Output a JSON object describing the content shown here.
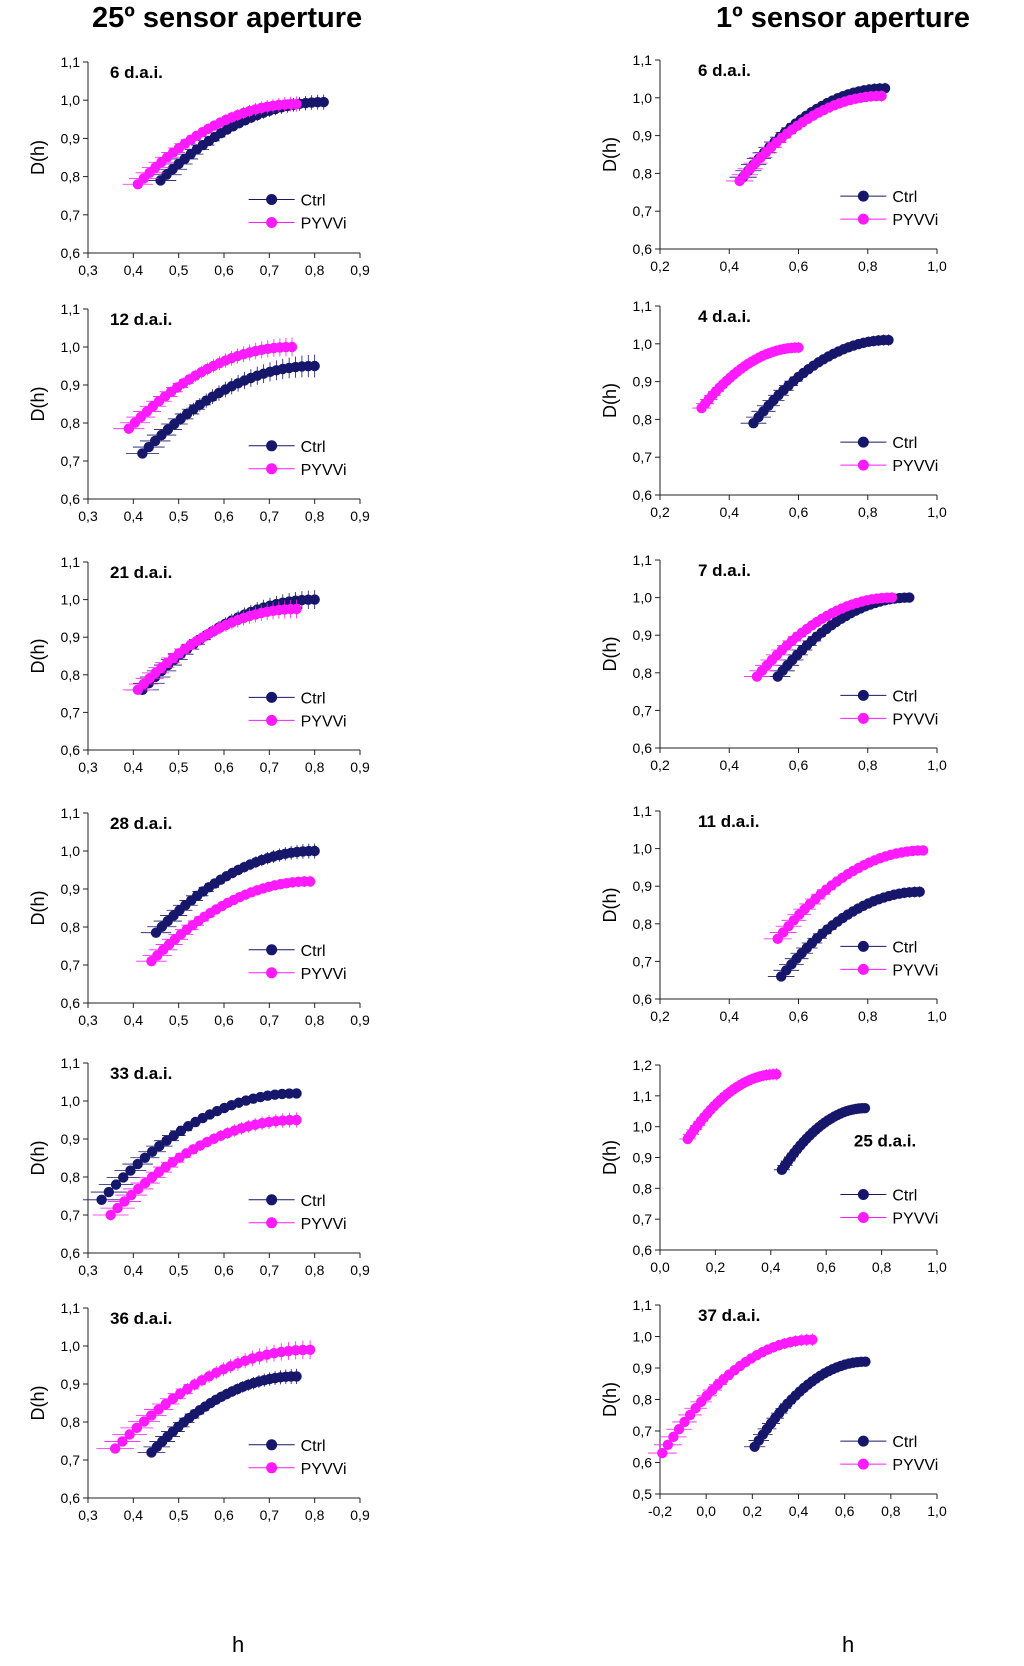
{
  "figure": {
    "left_title": "25º sensor aperture",
    "right_title": "1º sensor aperture",
    "x_label": "h",
    "y_label": "D(h)"
  },
  "colors": {
    "ctrl": "#16166b",
    "pyvvi": "#ff1aff"
  },
  "chart_data": [
    {
      "column": "left",
      "type": "scatter",
      "title": "6 d.a.i.",
      "xlabel": "h",
      "ylabel": "D(h)",
      "xlim": [
        0.3,
        0.9
      ],
      "ylim": [
        0.6,
        1.1
      ],
      "xticks": [
        "0,3",
        "0,4",
        "0,5",
        "0,6",
        "0,7",
        "0,8",
        "0,9"
      ],
      "yticks": [
        "0,6",
        "0,7",
        "0,8",
        "0,9",
        "1,0",
        "1,1"
      ],
      "legend": [
        "Ctrl",
        "PYVVi"
      ],
      "series": [
        {
          "name": "Ctrl",
          "x_range": [
            0.46,
            0.82
          ],
          "y_range": [
            0.79,
            0.995
          ],
          "err": 0.02
        },
        {
          "name": "PYVVi",
          "x_range": [
            0.41,
            0.76
          ],
          "y_range": [
            0.78,
            0.99
          ],
          "err": 0.02
        }
      ]
    },
    {
      "column": "left",
      "type": "scatter",
      "title": "12 d.a.i.",
      "xlabel": "h",
      "ylabel": "D(h)",
      "xlim": [
        0.3,
        0.9
      ],
      "ylim": [
        0.6,
        1.1
      ],
      "xticks": [
        "0,3",
        "0,4",
        "0,5",
        "0,6",
        "0,7",
        "0,8",
        "0,9"
      ],
      "yticks": [
        "0,6",
        "0,7",
        "0,8",
        "0,9",
        "1,0",
        "1,1"
      ],
      "legend": [
        "Ctrl",
        "PYVVi"
      ],
      "series": [
        {
          "name": "Ctrl",
          "x_range": [
            0.42,
            0.8
          ],
          "y_range": [
            0.72,
            0.95
          ],
          "err": 0.03
        },
        {
          "name": "PYVVi",
          "x_range": [
            0.39,
            0.75
          ],
          "y_range": [
            0.785,
            1.0
          ],
          "err": 0.025
        }
      ]
    },
    {
      "column": "left",
      "type": "scatter",
      "title": "21 d.a.i.",
      "xlabel": "h",
      "ylabel": "D(h)",
      "xlim": [
        0.3,
        0.9
      ],
      "ylim": [
        0.6,
        1.1
      ],
      "xticks": [
        "0,3",
        "0,4",
        "0,5",
        "0,6",
        "0,7",
        "0,8",
        "0,9"
      ],
      "yticks": [
        "0,6",
        "0,7",
        "0,8",
        "0,9",
        "1,0",
        "1,1"
      ],
      "legend": [
        "Ctrl",
        "PYVVi"
      ],
      "series": [
        {
          "name": "Ctrl",
          "x_range": [
            0.42,
            0.8
          ],
          "y_range": [
            0.76,
            1.0
          ],
          "err": 0.025
        },
        {
          "name": "PYVVi",
          "x_range": [
            0.41,
            0.76
          ],
          "y_range": [
            0.76,
            0.975
          ],
          "err": 0.025
        }
      ]
    },
    {
      "column": "left",
      "type": "scatter",
      "title": "28 d.a.i.",
      "xlabel": "h",
      "ylabel": "D(h)",
      "xlim": [
        0.3,
        0.9
      ],
      "ylim": [
        0.6,
        1.1
      ],
      "xticks": [
        "0,3",
        "0,4",
        "0,5",
        "0,6",
        "0,7",
        "0,8",
        "0,9"
      ],
      "yticks": [
        "0,6",
        "0,7",
        "0,8",
        "0,9",
        "1,0",
        "1,1"
      ],
      "legend": [
        "Ctrl",
        "PYVVi"
      ],
      "series": [
        {
          "name": "Ctrl",
          "x_range": [
            0.45,
            0.8
          ],
          "y_range": [
            0.785,
            1.0
          ],
          "err": 0.02
        },
        {
          "name": "PYVVi",
          "x_range": [
            0.44,
            0.79
          ],
          "y_range": [
            0.71,
            0.92
          ],
          "err": 0.015
        }
      ]
    },
    {
      "column": "left",
      "type": "scatter",
      "title": "33 d.a.i.",
      "xlabel": "h",
      "ylabel": "D(h)",
      "xlim": [
        0.3,
        0.9
      ],
      "ylim": [
        0.6,
        1.1
      ],
      "xticks": [
        "0,3",
        "0,4",
        "0,5",
        "0,6",
        "0,7",
        "0,8",
        "0,9"
      ],
      "yticks": [
        "0,6",
        "0,7",
        "0,8",
        "0,9",
        "1,0",
        "1,1"
      ],
      "legend": [
        "Ctrl",
        "PYVVi"
      ],
      "series": [
        {
          "name": "Ctrl",
          "x_range": [
            0.33,
            0.76
          ],
          "y_range": [
            0.74,
            1.02
          ],
          "err": 0.01
        },
        {
          "name": "PYVVi",
          "x_range": [
            0.35,
            0.76
          ],
          "y_range": [
            0.7,
            0.95
          ],
          "err": 0.02
        }
      ]
    },
    {
      "column": "left",
      "type": "scatter",
      "title": "36 d.a.i.",
      "xlabel": "h",
      "ylabel": "D(h)",
      "xlim": [
        0.3,
        0.9
      ],
      "ylim": [
        0.6,
        1.1
      ],
      "xticks": [
        "0,3",
        "0,4",
        "0,5",
        "0,6",
        "0,7",
        "0,8",
        "0,9"
      ],
      "yticks": [
        "0,6",
        "0,7",
        "0,8",
        "0,9",
        "1,0",
        "1,1"
      ],
      "legend": [
        "Ctrl",
        "PYVVi"
      ],
      "series": [
        {
          "name": "Ctrl",
          "x_range": [
            0.44,
            0.76
          ],
          "y_range": [
            0.72,
            0.92
          ],
          "err": 0.02
        },
        {
          "name": "PYVVi",
          "x_range": [
            0.36,
            0.79
          ],
          "y_range": [
            0.73,
            0.99
          ],
          "err": 0.025
        }
      ]
    },
    {
      "column": "right",
      "type": "scatter",
      "title": "6 d.a.i.",
      "xlabel": "h",
      "ylabel": "D(h)",
      "xlim": [
        0.2,
        1.0
      ],
      "ylim": [
        0.6,
        1.1
      ],
      "xticks": [
        "0,2",
        "0,4",
        "0,6",
        "0,8",
        "1,0"
      ],
      "yticks": [
        "0,6",
        "0,7",
        "0,8",
        "0,9",
        "1,0",
        "1,1"
      ],
      "legend": [
        "Ctrl",
        "PYVVi"
      ],
      "series": [
        {
          "name": "Ctrl",
          "x_range": [
            0.44,
            0.85
          ],
          "y_range": [
            0.79,
            1.025
          ],
          "err": 0.015
        },
        {
          "name": "PYVVi",
          "x_range": [
            0.43,
            0.84
          ],
          "y_range": [
            0.78,
            1.005
          ],
          "err": 0.015
        }
      ]
    },
    {
      "column": "right",
      "type": "scatter",
      "title": "4 d.a.i.",
      "xlabel": "h",
      "ylabel": "D(h)",
      "xlim": [
        0.2,
        1.0
      ],
      "ylim": [
        0.6,
        1.1
      ],
      "xticks": [
        "0,2",
        "0,4",
        "0,6",
        "0,8",
        "1,0"
      ],
      "yticks": [
        "0,6",
        "0,7",
        "0,8",
        "0,9",
        "1,0",
        "1,1"
      ],
      "legend": [
        "Ctrl",
        "PYVVi"
      ],
      "series": [
        {
          "name": "Ctrl",
          "x_range": [
            0.47,
            0.86
          ],
          "y_range": [
            0.79,
            1.01
          ],
          "err": 0.015
        },
        {
          "name": "PYVVi",
          "x_range": [
            0.32,
            0.6
          ],
          "y_range": [
            0.83,
            0.99
          ],
          "err": 0.015
        }
      ]
    },
    {
      "column": "right",
      "type": "scatter",
      "title": "7 d.a.i.",
      "xlabel": "h",
      "ylabel": "D(h)",
      "xlim": [
        0.2,
        1.0
      ],
      "ylim": [
        0.6,
        1.1
      ],
      "xticks": [
        "0,2",
        "0,4",
        "0,6",
        "0,8",
        "1,0"
      ],
      "yticks": [
        "0,6",
        "0,7",
        "0,8",
        "0,9",
        "1,0",
        "1,1"
      ],
      "legend": [
        "Ctrl",
        "PYVVi"
      ],
      "series": [
        {
          "name": "Ctrl",
          "x_range": [
            0.54,
            0.92
          ],
          "y_range": [
            0.79,
            1.0
          ],
          "err": 0.012
        },
        {
          "name": "PYVVi",
          "x_range": [
            0.48,
            0.87
          ],
          "y_range": [
            0.79,
            1.0
          ],
          "err": 0.012
        }
      ]
    },
    {
      "column": "right",
      "type": "scatter",
      "title": "11 d.a.i.",
      "xlabel": "h",
      "ylabel": "D(h)",
      "xlim": [
        0.2,
        1.0
      ],
      "ylim": [
        0.6,
        1.1
      ],
      "xticks": [
        "0,2",
        "0,4",
        "0,6",
        "0,8",
        "1,0"
      ],
      "yticks": [
        "0,6",
        "0,7",
        "0,8",
        "0,9",
        "1,0",
        "1,1"
      ],
      "legend": [
        "Ctrl",
        "PYVVi"
      ],
      "series": [
        {
          "name": "Ctrl",
          "x_range": [
            0.55,
            0.95
          ],
          "y_range": [
            0.66,
            0.885
          ],
          "err": 0.015
        },
        {
          "name": "PYVVi",
          "x_range": [
            0.54,
            0.96
          ],
          "y_range": [
            0.76,
            0.995
          ],
          "err": 0.012
        }
      ]
    },
    {
      "column": "right",
      "type": "scatter",
      "title": "25 d.a.i.",
      "xlabel": "h",
      "ylabel": "D(h)",
      "xlim": [
        0.0,
        1.0
      ],
      "ylim": [
        0.6,
        1.2
      ],
      "xticks": [
        "0,0",
        "0,2",
        "0,4",
        "0,6",
        "0,8",
        "1,0"
      ],
      "yticks": [
        "0,6",
        "0,7",
        "0,8",
        "0,9",
        "1,0",
        "1,1",
        "1,2"
      ],
      "legend": [
        "Ctrl",
        "PYVVi"
      ],
      "series": [
        {
          "name": "Ctrl",
          "x_range": [
            0.44,
            0.74
          ],
          "y_range": [
            0.86,
            1.06
          ],
          "err": 0.015
        },
        {
          "name": "PYVVi",
          "x_range": [
            0.1,
            0.42
          ],
          "y_range": [
            0.96,
            1.17
          ],
          "err": 0.02
        }
      ]
    },
    {
      "column": "right",
      "type": "scatter",
      "title": "37 d.a.i.",
      "xlabel": "h",
      "ylabel": "D(h)",
      "xlim": [
        -0.2,
        1.0
      ],
      "ylim": [
        0.5,
        1.1
      ],
      "xticks": [
        "-0,2",
        "0,0",
        "0,2",
        "0,4",
        "0,6",
        "0,8",
        "1,0"
      ],
      "yticks": [
        "0,5",
        "0,6",
        "0,7",
        "0,8",
        "0,9",
        "1,0",
        "1,1"
      ],
      "legend": [
        "Ctrl",
        "PYVVi"
      ],
      "series": [
        {
          "name": "Ctrl",
          "x_range": [
            0.21,
            0.69
          ],
          "y_range": [
            0.65,
            0.92
          ],
          "err": 0.012
        },
        {
          "name": "PYVVi",
          "x_range": [
            -0.19,
            0.46
          ],
          "y_range": [
            0.63,
            0.99
          ],
          "err": 0.02
        }
      ]
    }
  ]
}
